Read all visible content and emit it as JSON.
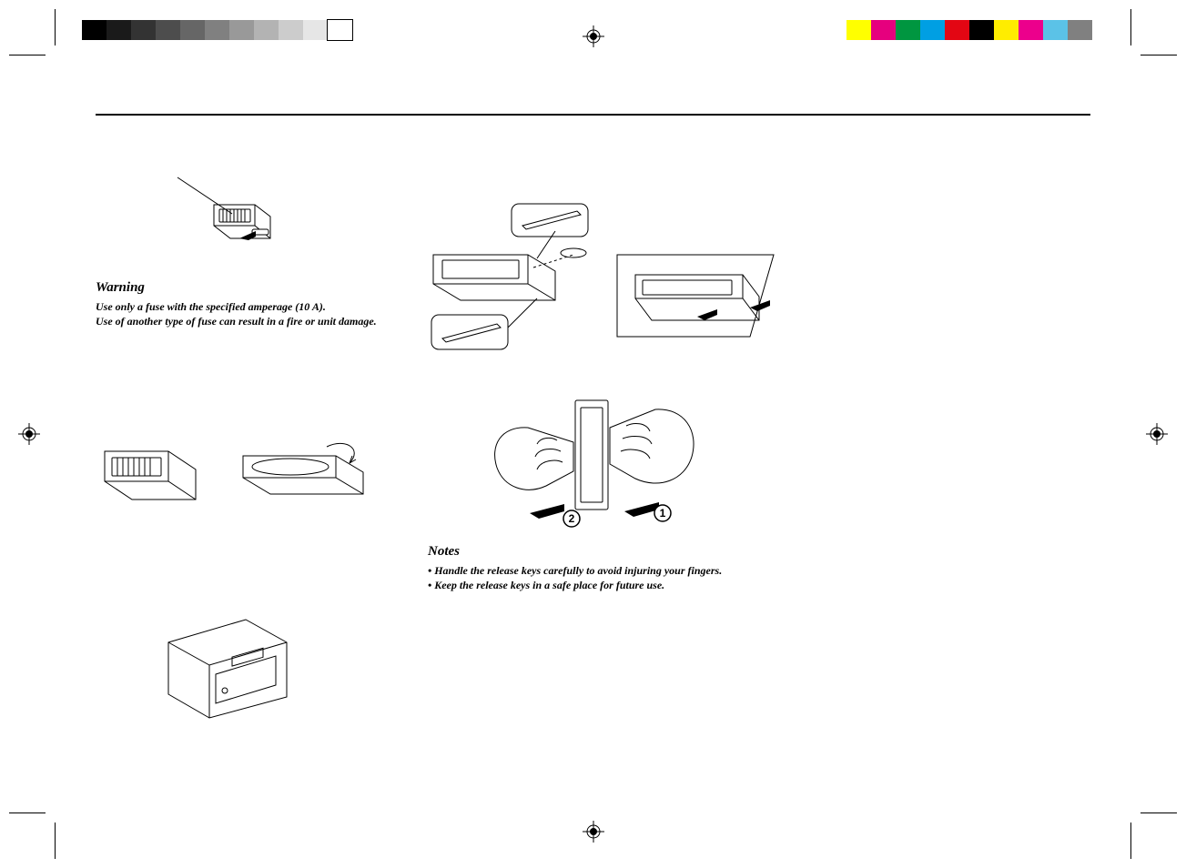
{
  "print_marks": {
    "grayscale_bar": [
      "#000000",
      "#1a1a1a",
      "#333333",
      "#4d4d4d",
      "#666666",
      "#808080",
      "#999999",
      "#b3b3b3",
      "#cccccc",
      "#e6e6e6",
      "#ffffff"
    ],
    "color_bar": [
      "#ffff00",
      "#e6007e",
      "#009640",
      "#009fe3",
      "#e30613",
      "#000000",
      "#ffed00",
      "#ec008c",
      "#5bc2e7",
      "#808080"
    ]
  },
  "left_column": {
    "warning": {
      "heading": "Warning",
      "line1": "Use only a fuse with the specified amperage (10 A).",
      "line2": "Use of another type of fuse can result in a fire or unit damage."
    }
  },
  "right_column": {
    "notes": {
      "heading": "Notes",
      "items": [
        "Handle the release keys carefully to avoid injuring your fingers.",
        "Keep the release keys in a safe place for future use."
      ]
    },
    "diagram_labels": {
      "step1": "1",
      "step2": "2"
    }
  },
  "style": {
    "body_font_family": "Georgia, serif",
    "heading_fontsize_pt": 11,
    "body_fontsize_pt": 9,
    "text_color": "#000000",
    "background_color": "#ffffff"
  }
}
